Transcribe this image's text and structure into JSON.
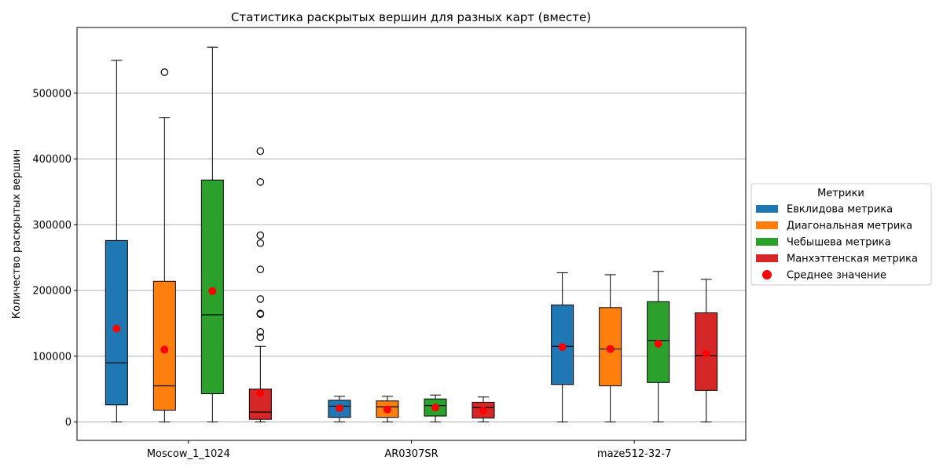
{
  "chart_data": {
    "type": "box",
    "title": "Статистика раскрытых вершин для разных карт (вместе)",
    "xlabel": "",
    "ylabel": "Количество раскрытых вершин",
    "ylim": [
      -28000,
      600000
    ],
    "yticks": [
      0,
      100000,
      200000,
      300000,
      400000,
      500000
    ],
    "grid": "y",
    "categories": [
      "Moscow_1_1024",
      "AR0307SR",
      "maze512-32-7"
    ],
    "legend": {
      "title": "Метрики",
      "placement": "right",
      "mean_label": "Среднее значение"
    },
    "mean_color": "#ff0000",
    "series": [
      {
        "name": "Евклидова метрика",
        "color": "#1f77b4",
        "boxes": [
          {
            "min": 0,
            "q1": 26000,
            "median": 90000,
            "q3": 276000,
            "max": 550000,
            "mean": 142000,
            "outliers": []
          },
          {
            "min": 0,
            "q1": 7000,
            "median": 24000,
            "q3": 33000,
            "max": 39000,
            "mean": 21000,
            "outliers": []
          },
          {
            "min": 0,
            "q1": 57000,
            "median": 115000,
            "q3": 178000,
            "max": 227000,
            "mean": 114000,
            "outliers": []
          }
        ]
      },
      {
        "name": "Диагональная метрика",
        "color": "#ff7f0e",
        "boxes": [
          {
            "min": 0,
            "q1": 18000,
            "median": 55000,
            "q3": 214000,
            "max": 463000,
            "mean": 110000,
            "outliers": [
              532000
            ]
          },
          {
            "min": 0,
            "q1": 7000,
            "median": 23000,
            "q3": 32000,
            "max": 39000,
            "mean": 19000,
            "outliers": []
          },
          {
            "min": 0,
            "q1": 55000,
            "median": 111000,
            "q3": 174000,
            "max": 224000,
            "mean": 111000,
            "outliers": []
          }
        ]
      },
      {
        "name": "Чебышева метрика",
        "color": "#2ca02c",
        "boxes": [
          {
            "min": 0,
            "q1": 43000,
            "median": 163000,
            "q3": 368000,
            "max": 570000,
            "mean": 199000,
            "outliers": []
          },
          {
            "min": 0,
            "q1": 9000,
            "median": 25000,
            "q3": 35000,
            "max": 41000,
            "mean": 22000,
            "outliers": []
          },
          {
            "min": 0,
            "q1": 60000,
            "median": 124000,
            "q3": 183000,
            "max": 229000,
            "mean": 119000,
            "outliers": []
          }
        ]
      },
      {
        "name": "Манхэттенская метрика",
        "color": "#d62728",
        "boxes": [
          {
            "min": 0,
            "q1": 4000,
            "median": 15000,
            "q3": 50000,
            "max": 115000,
            "mean": 44000,
            "outliers": [
              129000,
              137000,
              164000,
              165000,
              187000,
              232000,
              272000,
              284000,
              365000,
              412000
            ]
          },
          {
            "min": 0,
            "q1": 6000,
            "median": 22000,
            "q3": 30000,
            "max": 38000,
            "mean": 17000,
            "outliers": []
          },
          {
            "min": 0,
            "q1": 48000,
            "median": 101000,
            "q3": 166000,
            "max": 217000,
            "mean": 104000,
            "outliers": []
          }
        ]
      }
    ]
  }
}
